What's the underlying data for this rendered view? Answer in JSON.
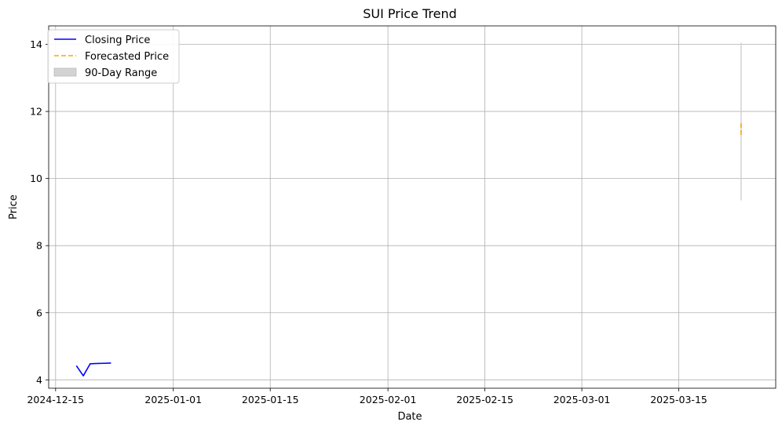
{
  "chart_data": {
    "type": "line",
    "title": "SUI Price Trend",
    "xlabel": "Date",
    "ylabel": "Price",
    "x_type": "date",
    "xlim": [
      "2024-12-14",
      "2025-03-29"
    ],
    "ylim": [
      3.75,
      14.55
    ],
    "grid": true,
    "legend_position": "top-left",
    "x_ticks": [
      "2024-12-15",
      "2025-01-01",
      "2025-01-15",
      "2025-02-01",
      "2025-02-15",
      "2025-03-01",
      "2025-03-15"
    ],
    "y_ticks": [
      4,
      6,
      8,
      10,
      12,
      14
    ],
    "series": [
      {
        "name": "Closing Price",
        "style": "solid",
        "color": "#0000ff",
        "x": [
          "2024-12-18",
          "2024-12-19",
          "2024-12-20",
          "2024-12-23"
        ],
        "y": [
          4.42,
          4.12,
          4.48,
          4.5
        ]
      },
      {
        "name": "Forecasted Price",
        "style": "dashed",
        "color": "#ffa500",
        "x": [
          "2025-03-24",
          "2025-03-24"
        ],
        "y": [
          11.3,
          11.7
        ]
      }
    ],
    "range_band": {
      "name": "90-Day Range",
      "color": "#d3d3d3",
      "x": "2025-03-24",
      "low": 9.35,
      "high": 14.05
    }
  }
}
